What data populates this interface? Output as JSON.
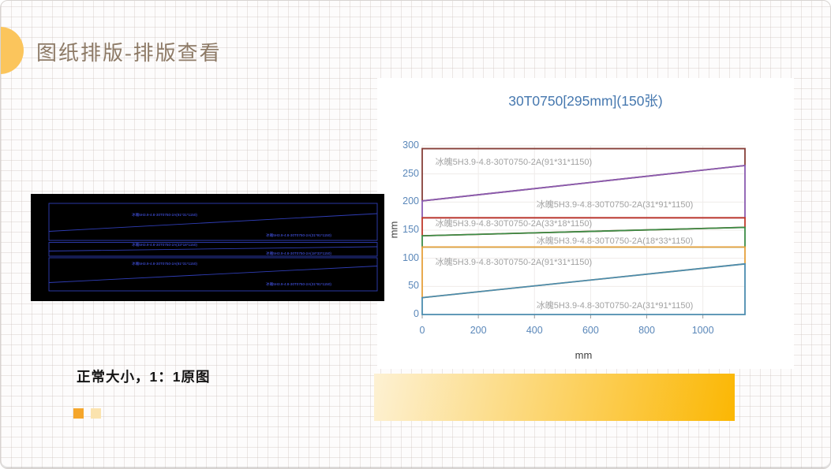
{
  "slide": {
    "title": "图纸排版-排版查看",
    "caption": "正常大小，1：1原图"
  },
  "decorations": {
    "circle_color": "#FBC55C",
    "square_solid_color": "#F5A62B",
    "square_pale_color": "#FBE3AE",
    "gradient_bar_from": "#FDF1D3",
    "gradient_bar_to": "#FBB703"
  },
  "cad_preview": {
    "background": "#000000",
    "line_color": "#2F3DB5",
    "label_color": "#4A5CFF",
    "labels": [
      "冰魄5H3.9-4.8-30T0750-2A(91*31*1150)",
      "冰魄5H3.9-4.8-30T0750-2A(31*91*1150)",
      "冰魄5H3.9-4.8-30T0750-2A(33*18*1150)",
      "冰魄5H3.9-4.8-30T0750-2A(18*33*1150)",
      "冰魄5H3.9-4.8-30T0750-2A(91*31*1150)",
      "冰魄5H3.9-4.8-30T0750-2A(31*91*1150)"
    ]
  },
  "chart_data": {
    "type": "line",
    "title": "30T0750[295mm](150张)",
    "title_color": "#4678AF",
    "xlabel": "mm",
    "ylabel": "mm",
    "xlim": [
      0,
      1150
    ],
    "ylim": [
      0,
      300
    ],
    "x_ticks": [
      0,
      200,
      400,
      600,
      800,
      1000
    ],
    "y_ticks": [
      0,
      50,
      100,
      150,
      200,
      250,
      300
    ],
    "grid": true,
    "tick_color": "#5A87B9",
    "series_label_color": "#A2A2A2",
    "pieces": [
      {
        "label": "冰魄5H3.9-4.8-30T0750-2A(91*31*1150)",
        "color": "#863F38",
        "top_mm": [
          295,
          295
        ],
        "bottom_mm": [
          202,
          265
        ],
        "label_at_mm": [
          326,
          272
        ]
      },
      {
        "label": "冰魄5H3.9-4.8-30T0750-2A(31*91*1150)",
        "color": "#8A5BB0",
        "top_mm": [
          202,
          265
        ],
        "bottom_mm": [
          172,
          172
        ],
        "label_at_mm": [
          686,
          196
        ]
      },
      {
        "label": "冰魄5H3.9-4.8-30T0750-2A(33*18*1150)",
        "color": "#C03A2B",
        "top_mm": [
          172,
          172
        ],
        "bottom_mm": [
          140,
          155
        ],
        "label_at_mm": [
          326,
          163
        ]
      },
      {
        "label": "冰魄5H3.9-4.8-30T0750-2A(18*33*1150)",
        "color": "#3C8C46",
        "top_mm": [
          140,
          155
        ],
        "bottom_mm": [
          120,
          120
        ],
        "label_at_mm": [
          686,
          132
        ]
      },
      {
        "label": "冰魄5H3.9-4.8-30T0750-2A(91*31*1150)",
        "color": "#E6A03C",
        "top_mm": [
          120,
          120
        ],
        "bottom_mm": [
          30,
          90
        ],
        "label_at_mm": [
          326,
          94
        ]
      },
      {
        "label": "冰魄5H3.9-4.8-30T0750-2A(31*91*1150)",
        "color": "#4B8CAF",
        "top_mm": [
          30,
          90
        ],
        "bottom_mm": [
          0,
          0
        ],
        "label_at_mm": [
          686,
          17
        ]
      }
    ]
  }
}
